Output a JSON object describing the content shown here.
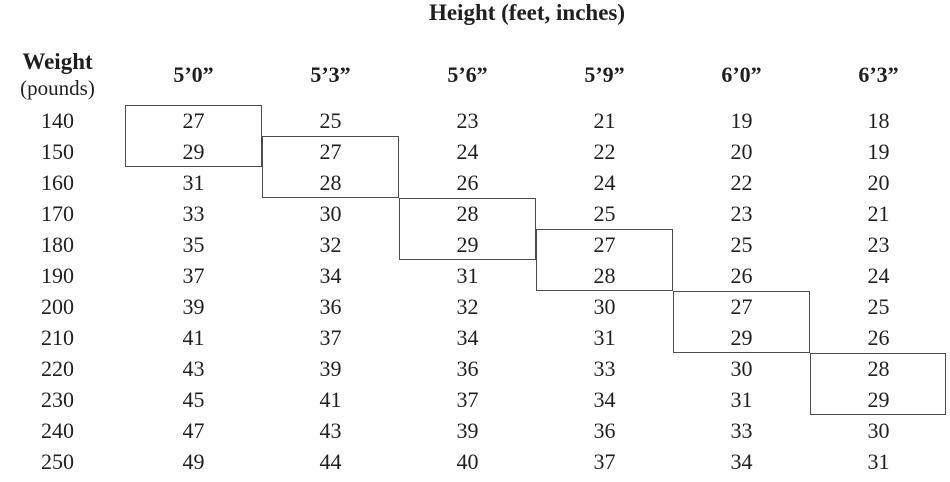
{
  "title": "Height (feet, inches)",
  "corner": {
    "line1": "Weight",
    "line2": "(pounds)"
  },
  "columns": [
    "5’0”",
    "5’3”",
    "5’6”",
    "5’9”",
    "6’0”",
    "6’3”"
  ],
  "table": {
    "rows": [
      {
        "weight": "140",
        "values": [
          "27",
          "25",
          "23",
          "21",
          "19",
          "18"
        ]
      },
      {
        "weight": "150",
        "values": [
          "29",
          "27",
          "24",
          "22",
          "20",
          "19"
        ]
      },
      {
        "weight": "160",
        "values": [
          "31",
          "28",
          "26",
          "24",
          "22",
          "20"
        ]
      },
      {
        "weight": "170",
        "values": [
          "33",
          "30",
          "28",
          "25",
          "23",
          "21"
        ]
      },
      {
        "weight": "180",
        "values": [
          "35",
          "32",
          "29",
          "27",
          "25",
          "23"
        ]
      },
      {
        "weight": "190",
        "values": [
          "37",
          "34",
          "31",
          "28",
          "26",
          "24"
        ]
      },
      {
        "weight": "200",
        "values": [
          "39",
          "36",
          "32",
          "30",
          "27",
          "25"
        ]
      },
      {
        "weight": "210",
        "values": [
          "41",
          "37",
          "34",
          "31",
          "29",
          "26"
        ]
      },
      {
        "weight": "220",
        "values": [
          "43",
          "39",
          "36",
          "33",
          "30",
          "28"
        ]
      },
      {
        "weight": "230",
        "values": [
          "45",
          "41",
          "37",
          "34",
          "31",
          "29"
        ]
      },
      {
        "weight": "240",
        "values": [
          "47",
          "43",
          "39",
          "36",
          "33",
          "30"
        ]
      },
      {
        "weight": "250",
        "values": [
          "49",
          "44",
          "40",
          "37",
          "34",
          "31"
        ]
      }
    ]
  },
  "highlight_boxes": [
    {
      "column": "5’0”",
      "weights": [
        "140",
        "150"
      ],
      "boxed_values": [
        "27",
        "29"
      ]
    },
    {
      "column": "5’3”",
      "weights": [
        "150",
        "160"
      ],
      "boxed_values": [
        "27",
        "28"
      ]
    },
    {
      "column": "5’6”",
      "weights": [
        "170",
        "180"
      ],
      "boxed_values": [
        "28",
        "29"
      ]
    },
    {
      "column": "5’9”",
      "weights": [
        "180",
        "190"
      ],
      "boxed_values": [
        "27",
        "28"
      ]
    },
    {
      "column": "6’0”",
      "weights": [
        "200",
        "210"
      ],
      "boxed_values": [
        "27",
        "29"
      ]
    },
    {
      "column": "6’3”",
      "weights": [
        "220",
        "230"
      ],
      "boxed_values": [
        "28",
        "29"
      ]
    }
  ],
  "colors": {
    "text": "#1f1f1f",
    "box_border": "#4d4d4d",
    "background": "#ffffff"
  }
}
